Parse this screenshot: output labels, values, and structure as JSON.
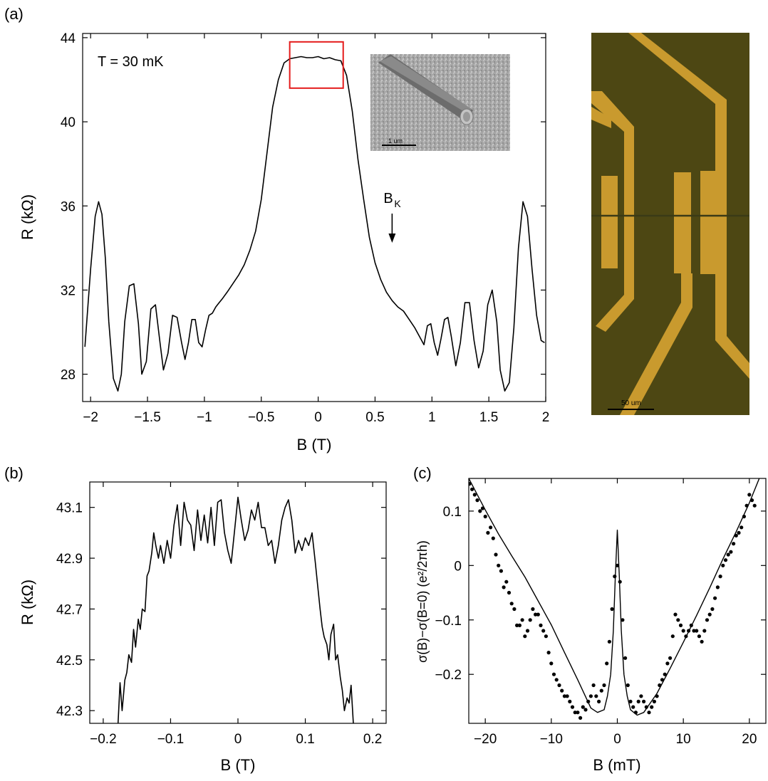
{
  "panel_labels": {
    "a": "(a)",
    "b": "(b)",
    "c": "(c)"
  },
  "colors": {
    "line": "#000000",
    "highlight_box": "#e41b1b",
    "optical_bg": "#4a4412",
    "optical_contacts": "#c99a2e"
  },
  "inset_sem": {
    "scale_label": "1 um"
  },
  "optical_image": {
    "scale_label": "50 um"
  },
  "chart_data": [
    {
      "id": "a",
      "type": "line",
      "title": "",
      "xlabel": "B (T)",
      "ylabel": "R (kΩ)",
      "xlim": [
        -2.07,
        2.0
      ],
      "ylim": [
        26.7,
        44.2
      ],
      "xticks": [
        -2,
        -1.5,
        -1,
        -0.5,
        0,
        0.5,
        1,
        1.5,
        2
      ],
      "xtick_labels": [
        "−2",
        "−1.5",
        "−1",
        "−0.5",
        "0",
        "0.5",
        "1",
        "1.5",
        "2"
      ],
      "yticks": [
        28,
        32,
        36,
        40,
        44
      ],
      "ytick_labels": [
        "28",
        "32",
        "36",
        "40",
        "44"
      ],
      "annotations": {
        "temperature": "T = 30 mK",
        "bk_main": "B",
        "bk_sub": "K",
        "bk_x": 0.7
      },
      "highlight_box": {
        "x": [
          -0.25,
          0.22
        ],
        "y": [
          41.6,
          43.8
        ]
      },
      "series": [
        {
          "x": [
            -2.05,
            -2.0,
            -1.96,
            -1.93,
            -1.9,
            -1.87,
            -1.84,
            -1.8,
            -1.76,
            -1.73,
            -1.7,
            -1.66,
            -1.62,
            -1.58,
            -1.55,
            -1.51,
            -1.47,
            -1.43,
            -1.39,
            -1.36,
            -1.32,
            -1.28,
            -1.24,
            -1.2,
            -1.17,
            -1.14,
            -1.11,
            -1.08,
            -1.05,
            -1.02,
            -0.99,
            -0.96,
            -0.93,
            -0.9,
            -0.87,
            -0.84,
            -0.8,
            -0.75,
            -0.7,
            -0.65,
            -0.6,
            -0.55,
            -0.5,
            -0.45,
            -0.4,
            -0.35,
            -0.3,
            -0.25,
            -0.2,
            -0.15,
            -0.1,
            -0.05,
            0,
            0.05,
            0.1,
            0.15,
            0.2,
            0.25,
            0.3,
            0.35,
            0.4,
            0.45,
            0.5,
            0.55,
            0.6,
            0.65,
            0.7,
            0.75,
            0.8,
            0.85,
            0.9,
            0.93,
            0.96,
            0.99,
            1.02,
            1.05,
            1.08,
            1.11,
            1.14,
            1.17,
            1.21,
            1.25,
            1.29,
            1.33,
            1.37,
            1.41,
            1.45,
            1.49,
            1.53,
            1.57,
            1.6,
            1.64,
            1.68,
            1.72,
            1.76,
            1.8,
            1.84,
            1.88,
            1.92,
            1.96,
            1.99
          ],
          "y": [
            29.3,
            33.0,
            35.5,
            36.2,
            35.6,
            33.5,
            30.5,
            27.8,
            27.2,
            28.0,
            30.5,
            32.2,
            32.3,
            30.4,
            28.0,
            28.6,
            31.1,
            31.3,
            29.5,
            28.2,
            29.0,
            30.8,
            30.7,
            29.5,
            28.7,
            29.5,
            30.6,
            30.6,
            29.5,
            29.3,
            30.1,
            30.8,
            30.9,
            31.2,
            31.4,
            31.6,
            31.9,
            32.3,
            32.7,
            33.2,
            33.9,
            34.8,
            36.3,
            38.5,
            40.7,
            42.0,
            42.8,
            43.0,
            43.05,
            43.1,
            43.05,
            43.05,
            43.1,
            43.0,
            43.05,
            42.95,
            42.9,
            42.2,
            40.5,
            38.2,
            36.3,
            34.5,
            33.3,
            32.5,
            31.9,
            31.5,
            31.2,
            31.0,
            30.6,
            30.2,
            29.7,
            29.4,
            30.3,
            30.4,
            29.5,
            28.9,
            29.7,
            30.6,
            30.7,
            29.8,
            28.4,
            29.5,
            31.4,
            31.4,
            29.6,
            28.3,
            29.1,
            31.3,
            32.0,
            30.5,
            28.2,
            27.2,
            27.6,
            30.2,
            34.0,
            36.2,
            35.5,
            33.0,
            30.8,
            29.6,
            29.5
          ]
        }
      ]
    },
    {
      "id": "b",
      "type": "line",
      "title": "",
      "xlabel": "B (T)",
      "ylabel": "R (kΩ)",
      "xlim": [
        -0.22,
        0.22
      ],
      "ylim": [
        42.25,
        43.2
      ],
      "xticks": [
        -0.2,
        -0.1,
        0,
        0.1,
        0.2
      ],
      "xtick_labels": [
        "−0.2",
        "−0.1",
        "0",
        "0.1",
        "0.2"
      ],
      "yticks": [
        42.3,
        42.5,
        42.7,
        42.9,
        43.1
      ],
      "ytick_labels": [
        "42.3",
        "42.5",
        "42.7",
        "42.9",
        "43.1"
      ],
      "series": [
        {
          "x": [
            -0.178,
            -0.175,
            -0.172,
            -0.168,
            -0.165,
            -0.162,
            -0.158,
            -0.155,
            -0.152,
            -0.148,
            -0.145,
            -0.142,
            -0.138,
            -0.135,
            -0.132,
            -0.128,
            -0.125,
            -0.122,
            -0.118,
            -0.115,
            -0.11,
            -0.105,
            -0.1,
            -0.095,
            -0.09,
            -0.085,
            -0.08,
            -0.075,
            -0.07,
            -0.065,
            -0.06,
            -0.055,
            -0.05,
            -0.045,
            -0.04,
            -0.035,
            -0.03,
            -0.025,
            -0.02,
            -0.015,
            -0.01,
            -0.005,
            0,
            0.005,
            0.01,
            0.015,
            0.02,
            0.025,
            0.03,
            0.035,
            0.04,
            0.045,
            0.05,
            0.055,
            0.06,
            0.065,
            0.07,
            0.075,
            0.08,
            0.085,
            0.09,
            0.095,
            0.1,
            0.105,
            0.11,
            0.115,
            0.118,
            0.122,
            0.125,
            0.128,
            0.132,
            0.135,
            0.138,
            0.142,
            0.145,
            0.148,
            0.152,
            0.155,
            0.158,
            0.162,
            0.165,
            0.168,
            0.172
          ],
          "y": [
            42.25,
            42.41,
            42.3,
            42.42,
            42.45,
            42.52,
            42.49,
            42.62,
            42.55,
            42.66,
            42.62,
            42.7,
            42.69,
            42.83,
            42.85,
            42.92,
            43.0,
            42.95,
            42.9,
            42.95,
            42.88,
            42.97,
            42.9,
            43.03,
            43.11,
            42.95,
            43.12,
            43.05,
            43.03,
            42.93,
            43.09,
            42.97,
            43.07,
            42.96,
            43.1,
            42.95,
            43.12,
            43.13,
            43.0,
            42.93,
            42.88,
            43.01,
            43.14,
            43.05,
            42.97,
            43.01,
            43.09,
            43.05,
            43.12,
            43.02,
            43.02,
            42.95,
            42.97,
            42.88,
            42.95,
            43.05,
            43.1,
            43.13,
            43.05,
            42.92,
            42.97,
            42.93,
            42.98,
            42.95,
            43.0,
            42.88,
            42.8,
            42.7,
            42.63,
            42.59,
            42.56,
            42.5,
            42.6,
            42.64,
            42.5,
            42.52,
            42.43,
            42.38,
            42.3,
            42.35,
            42.33,
            42.4,
            42.22
          ]
        }
      ]
    },
    {
      "id": "c",
      "type": "scatter",
      "title": "",
      "xlabel": "B (mT)",
      "ylabel": "σ(B)−σ(B=0) (e²/2πh)",
      "xlim": [
        -22.5,
        22.5
      ],
      "ylim": [
        -0.29,
        0.16
      ],
      "xticks": [
        -20,
        -10,
        0,
        10,
        20
      ],
      "xtick_labels": [
        "−20",
        "−10",
        "0",
        "10",
        "20"
      ],
      "yticks": [
        -0.2,
        -0.1,
        0,
        0.1
      ],
      "ytick_labels": [
        "−0.2",
        "−0.1",
        "0",
        "0.1"
      ],
      "series": [
        {
          "type": "scatter",
          "x": [
            -22.4,
            -22.0,
            -21.6,
            -21.2,
            -20.8,
            -20.4,
            -20.0,
            -19.6,
            -19.2,
            -18.8,
            -18.4,
            -18.0,
            -17.6,
            -17.2,
            -16.8,
            -16.4,
            -16.0,
            -15.6,
            -15.2,
            -14.8,
            -14.4,
            -14.0,
            -13.6,
            -13.2,
            -12.8,
            -12.4,
            -12.0,
            -11.6,
            -11.2,
            -10.8,
            -10.4,
            -10.0,
            -9.6,
            -9.2,
            -8.8,
            -8.4,
            -8.0,
            -7.6,
            -7.2,
            -6.8,
            -6.4,
            -6.0,
            -5.6,
            -5.2,
            -4.8,
            -4.4,
            -4.0,
            -3.6,
            -3.2,
            -2.8,
            -2.4,
            -2.0,
            -1.6,
            -1.2,
            -0.8,
            -0.4,
            0.0,
            0.4,
            0.8,
            1.2,
            1.6,
            2.0,
            2.4,
            2.8,
            3.2,
            3.6,
            4.0,
            4.4,
            4.8,
            5.2,
            5.6,
            6.0,
            6.4,
            6.8,
            7.2,
            7.6,
            8.0,
            8.4,
            8.8,
            9.2,
            9.6,
            10.0,
            10.4,
            10.8,
            11.2,
            11.6,
            12.0,
            12.4,
            12.8,
            13.2,
            13.6,
            14.0,
            14.4,
            14.8,
            15.2,
            15.6,
            16.0,
            16.4,
            16.8,
            17.2,
            17.6,
            18.0,
            18.4,
            18.8,
            19.2,
            19.6,
            20.0,
            20.4,
            20.8
          ],
          "y": [
            0.15,
            0.14,
            0.13,
            0.12,
            0.1,
            0.105,
            0.09,
            0.06,
            0.07,
            0.05,
            0.02,
            0.0,
            -0.01,
            -0.04,
            -0.03,
            -0.05,
            -0.07,
            -0.08,
            -0.11,
            -0.11,
            -0.1,
            -0.13,
            -0.12,
            -0.1,
            -0.08,
            -0.09,
            -0.09,
            -0.11,
            -0.12,
            -0.13,
            -0.16,
            -0.18,
            -0.2,
            -0.21,
            -0.22,
            -0.23,
            -0.24,
            -0.24,
            -0.25,
            -0.26,
            -0.27,
            -0.27,
            -0.28,
            -0.26,
            -0.265,
            -0.25,
            -0.24,
            -0.22,
            -0.24,
            -0.25,
            -0.23,
            -0.22,
            -0.18,
            -0.14,
            -0.08,
            -0.02,
            0.0,
            -0.03,
            -0.1,
            -0.17,
            -0.22,
            -0.25,
            -0.26,
            -0.27,
            -0.25,
            -0.24,
            -0.25,
            -0.26,
            -0.27,
            -0.26,
            -0.25,
            -0.24,
            -0.22,
            -0.21,
            -0.2,
            -0.18,
            -0.17,
            -0.13,
            -0.09,
            -0.1,
            -0.11,
            -0.12,
            -0.13,
            -0.12,
            -0.11,
            -0.12,
            -0.12,
            -0.13,
            -0.14,
            -0.12,
            -0.1,
            -0.09,
            -0.08,
            -0.06,
            -0.04,
            -0.02,
            0.0,
            0.01,
            0.02,
            0.025,
            0.04,
            0.055,
            0.06,
            0.07,
            0.09,
            0.11,
            0.13,
            0.12,
            0.11
          ]
        },
        {
          "type": "line",
          "x": [
            -22.5,
            -20,
            -18,
            -16,
            -14,
            -12,
            -10,
            -8,
            -6,
            -4,
            -3,
            -2,
            -1.5,
            -1,
            -0.6,
            -0.3,
            0,
            0.3,
            0.6,
            1,
            1.5,
            2,
            3,
            4,
            6,
            8,
            10,
            12,
            14,
            16,
            18,
            20,
            22.5
          ],
          "y": [
            0.16,
            0.102,
            0.058,
            0.018,
            -0.021,
            -0.065,
            -0.109,
            -0.16,
            -0.21,
            -0.262,
            -0.27,
            -0.265,
            -0.24,
            -0.2,
            -0.12,
            -0.02,
            0.065,
            -0.02,
            -0.12,
            -0.2,
            -0.24,
            -0.265,
            -0.275,
            -0.27,
            -0.235,
            -0.189,
            -0.141,
            -0.092,
            -0.041,
            0.012,
            0.062,
            0.115,
            0.19
          ]
        }
      ]
    }
  ]
}
